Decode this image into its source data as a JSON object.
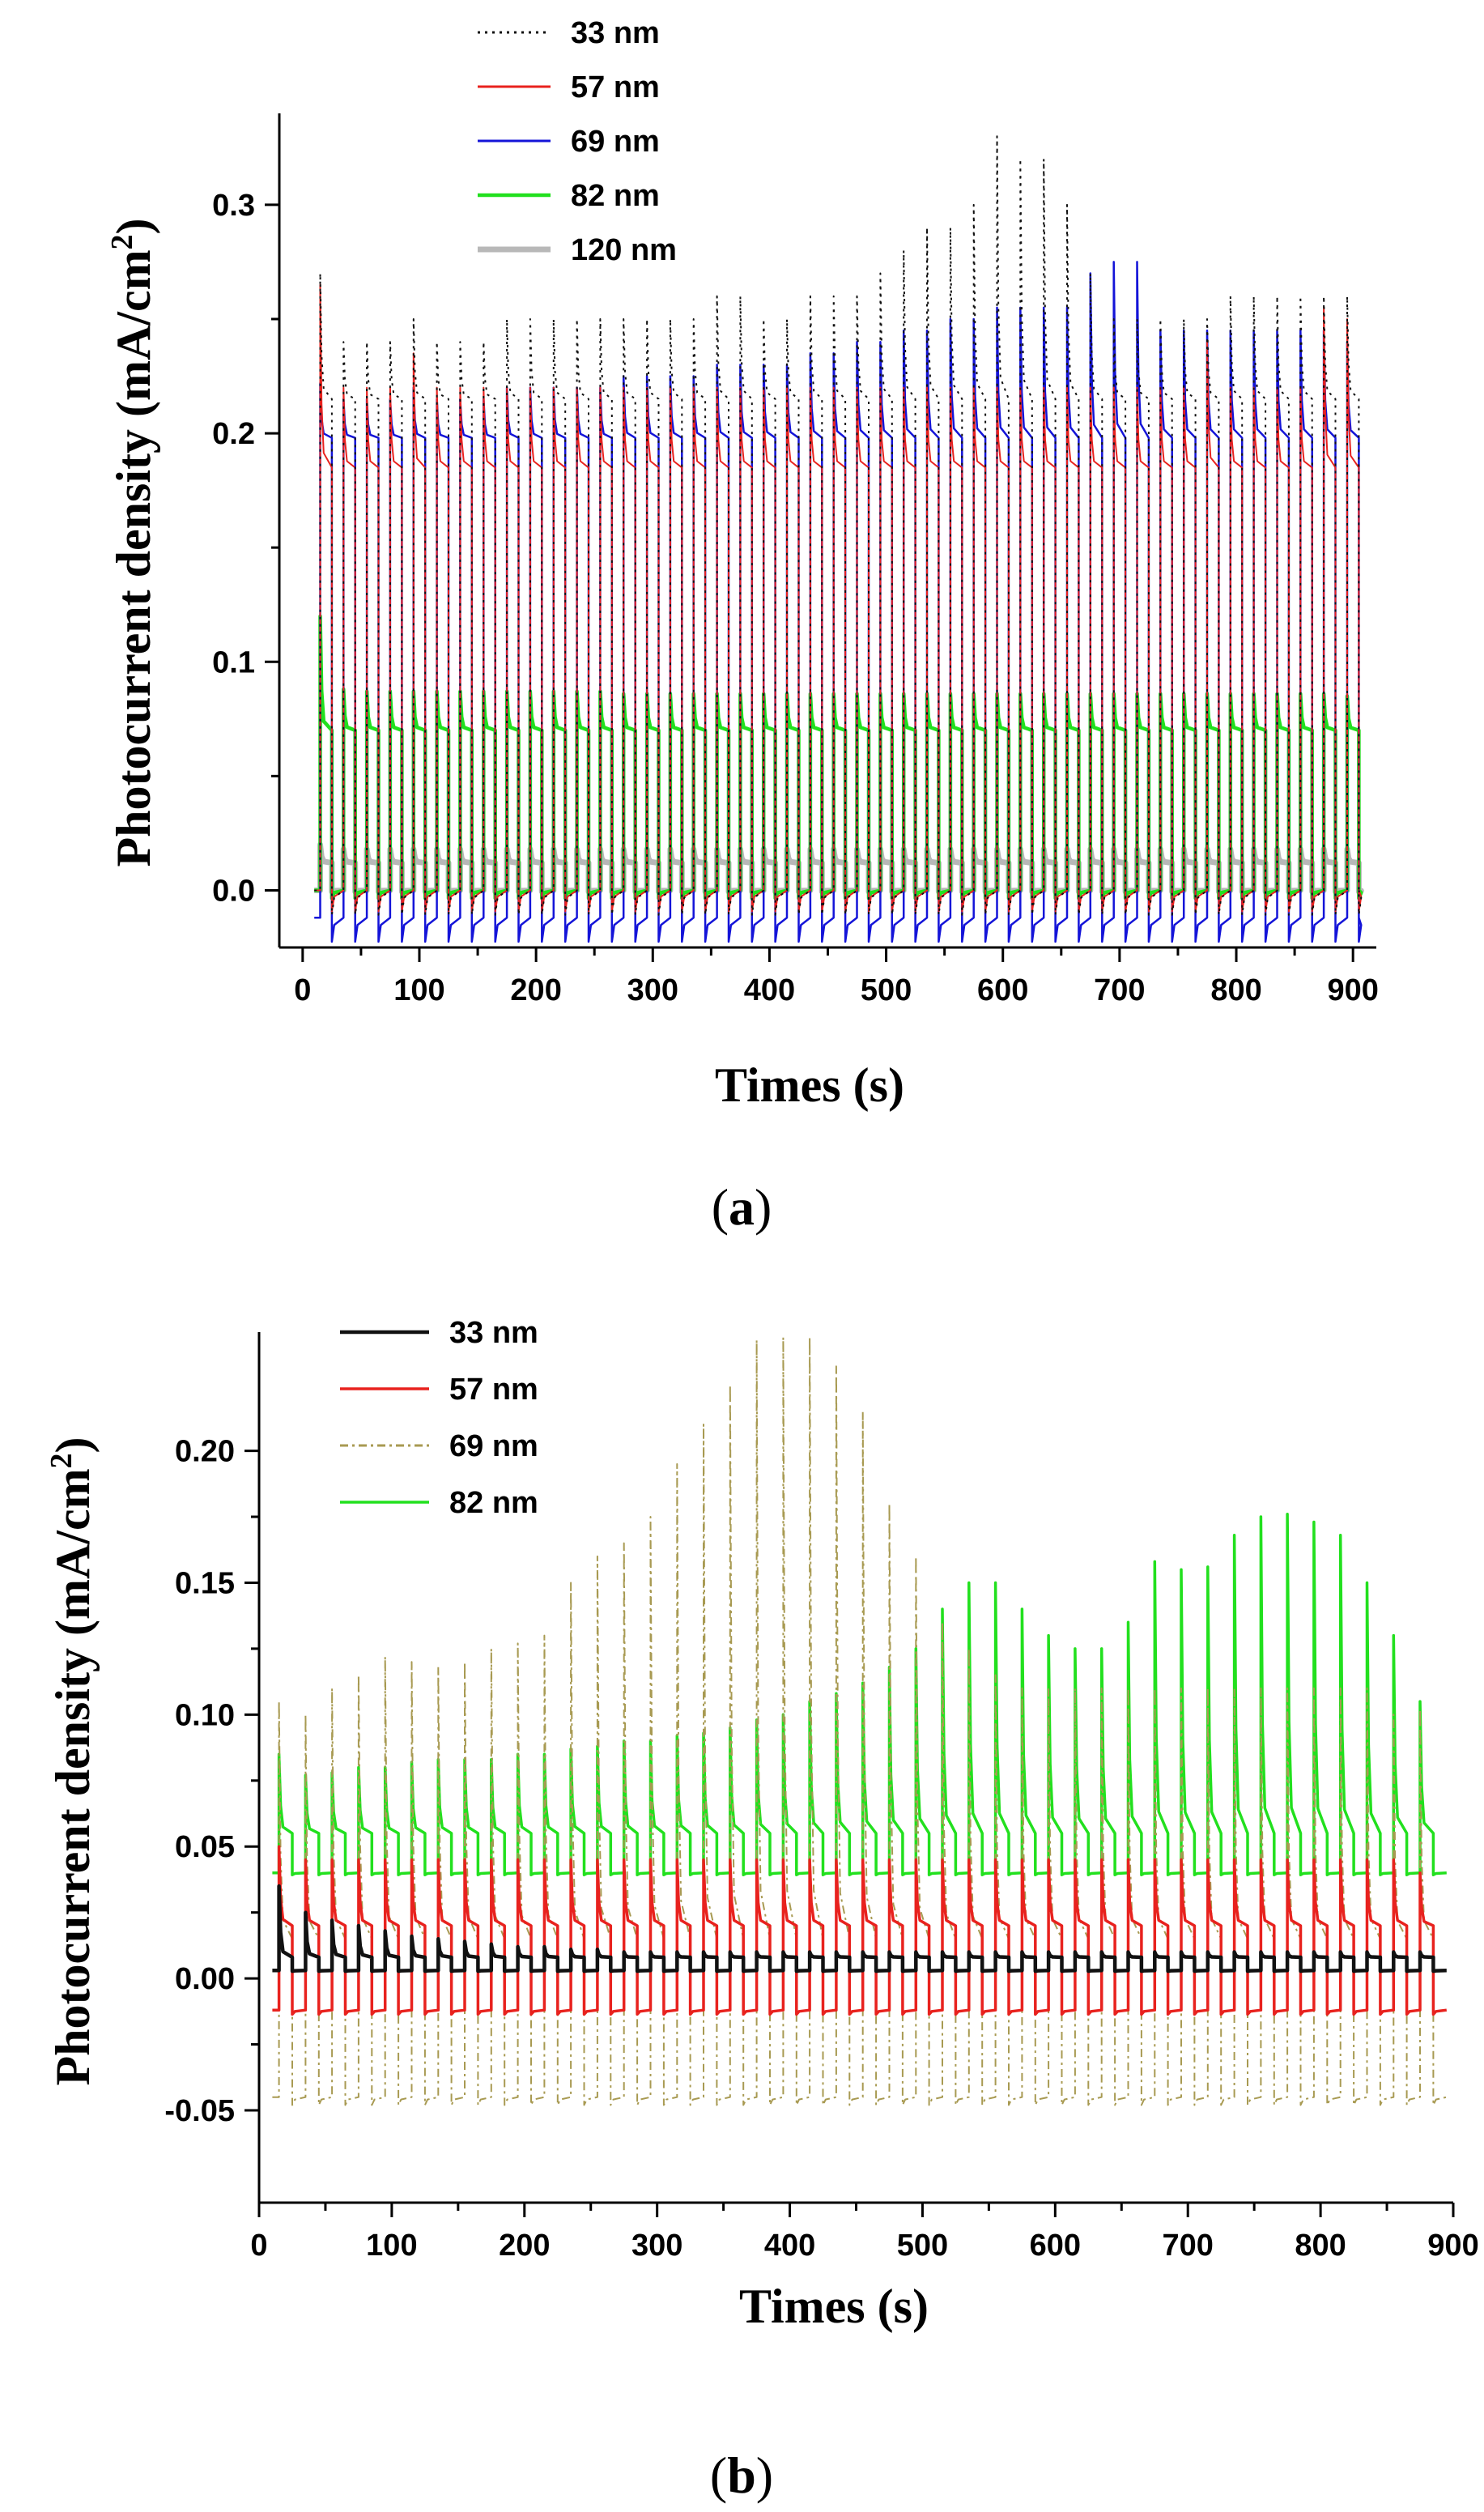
{
  "chart_data": [
    {
      "type": "line",
      "panel": "(a)",
      "panel_text": "a",
      "xlabel": "Times (s)",
      "ylabel": "Photocurrent density (mA/cm²)",
      "ylabel_main": "Photocurrent density (mA/cm",
      "ylabel_sup": "2",
      "ylabel_end": ")",
      "xlim": [
        -20,
        920
      ],
      "ylim": [
        -0.025,
        0.34
      ],
      "xticks": [
        0,
        100,
        200,
        300,
        400,
        500,
        600,
        700,
        800,
        900
      ],
      "xtick_labels": [
        "0",
        "100",
        "200",
        "300",
        "400",
        "500",
        "600",
        "700",
        "800",
        "900"
      ],
      "yticks": [
        0.0,
        0.1,
        0.2,
        0.3
      ],
      "ytick_labels": [
        "0.0",
        "0.1",
        "0.2",
        "0.3"
      ],
      "legend_position": "top-left",
      "period_s": 20,
      "time_range": [
        10,
        905
      ],
      "series": [
        {
          "name": "33  nm",
          "color": "#111111",
          "style": "dotted",
          "width": 2,
          "low": 0.0,
          "plateau": 0.215,
          "spike_peaks": [
            0.27,
            0.24,
            0.24,
            0.24,
            0.25,
            0.24,
            0.24,
            0.24,
            0.25,
            0.25,
            0.25,
            0.25,
            0.25,
            0.25,
            0.25,
            0.25,
            0.25,
            0.26,
            0.26,
            0.25,
            0.25,
            0.26,
            0.26,
            0.26,
            0.27,
            0.28,
            0.29,
            0.29,
            0.3,
            0.33,
            0.32,
            0.32,
            0.3,
            0.27,
            0.25,
            0.25,
            0.25,
            0.25,
            0.25,
            0.26,
            0.26,
            0.26,
            0.26,
            0.26,
            0.26
          ]
        },
        {
          "name": "57 nm",
          "color": "#e8221e",
          "style": "solid",
          "width": 2,
          "low": 0.0,
          "plateau": 0.185,
          "spike_peaks": [
            0.265,
            0.22,
            0.22,
            0.22,
            0.235,
            0.22,
            0.22,
            0.22,
            0.22,
            0.22,
            0.22,
            0.22,
            0.22,
            0.22,
            0.22,
            0.22,
            0.22,
            0.22,
            0.22,
            0.22,
            0.22,
            0.22,
            0.22,
            0.22,
            0.22,
            0.22,
            0.22,
            0.22,
            0.22,
            0.22,
            0.22,
            0.22,
            0.22,
            0.22,
            0.22,
            0.22,
            0.22,
            0.22,
            0.24,
            0.22,
            0.22,
            0.22,
            0.22,
            0.255,
            0.25
          ]
        },
        {
          "name": "69 nm",
          "color": "#1414d8",
          "style": "solid",
          "width": 2.5,
          "low": -0.012,
          "plateau": 0.198,
          "spike_peaks": [
            0.222,
            0.215,
            0.215,
            0.215,
            0.22,
            0.215,
            0.215,
            0.215,
            0.22,
            0.22,
            0.22,
            0.22,
            0.22,
            0.225,
            0.225,
            0.225,
            0.225,
            0.23,
            0.23,
            0.23,
            0.23,
            0.235,
            0.235,
            0.24,
            0.24,
            0.245,
            0.245,
            0.25,
            0.25,
            0.255,
            0.255,
            0.255,
            0.255,
            0.27,
            0.275,
            0.275,
            0.245,
            0.245,
            0.245,
            0.245,
            0.245,
            0.245,
            0.245,
            0.245,
            0.24
          ]
        },
        {
          "name": "82 nm",
          "color": "#22e01e",
          "style": "solid",
          "width": 4.5,
          "low": 0.0,
          "plateau": 0.07,
          "spike_peaks": [
            0.12,
            0.088,
            0.087,
            0.087,
            0.087,
            0.087,
            0.087,
            0.087,
            0.087,
            0.087,
            0.087,
            0.087,
            0.087,
            0.086,
            0.086,
            0.086,
            0.086,
            0.086,
            0.086,
            0.086,
            0.086,
            0.086,
            0.086,
            0.086,
            0.086,
            0.086,
            0.086,
            0.086,
            0.086,
            0.086,
            0.086,
            0.086,
            0.086,
            0.086,
            0.086,
            0.086,
            0.086,
            0.086,
            0.086,
            0.086,
            0.086,
            0.086,
            0.086,
            0.086,
            0.085
          ]
        },
        {
          "name": "120 nm",
          "color": "#b8b8b8",
          "style": "solid",
          "width": 7,
          "low": 0.0,
          "plateau": 0.012,
          "spike_peaks": [
            0.02,
            0.018,
            0.018,
            0.018,
            0.018,
            0.018,
            0.018,
            0.018,
            0.018,
            0.018,
            0.018,
            0.018,
            0.018,
            0.018,
            0.018,
            0.018,
            0.018,
            0.018,
            0.018,
            0.018,
            0.018,
            0.018,
            0.018,
            0.018,
            0.018,
            0.018,
            0.018,
            0.018,
            0.018,
            0.018,
            0.018,
            0.018,
            0.018,
            0.018,
            0.018,
            0.018,
            0.018,
            0.018,
            0.018,
            0.018,
            0.018,
            0.018,
            0.018,
            0.018,
            0.018
          ]
        }
      ]
    },
    {
      "type": "line",
      "panel": "(b)",
      "panel_text": "b",
      "xlabel": "Times (s)",
      "ylabel": "Photocurrent density (mA/cm²)",
      "ylabel_main": "Photocurrent density (mA/cm",
      "ylabel_sup": "2",
      "ylabel_end": ")",
      "xlim": [
        0,
        900
      ],
      "ylim": [
        -0.085,
        0.245
      ],
      "xticks": [
        0,
        100,
        200,
        300,
        400,
        500,
        600,
        700,
        800,
        900
      ],
      "xtick_labels": [
        "0",
        "100",
        "200",
        "300",
        "400",
        "500",
        "600",
        "700",
        "800",
        "900"
      ],
      "yticks": [
        -0.05,
        0.0,
        0.05,
        0.1,
        0.15,
        0.2
      ],
      "ytick_labels": [
        "-0.05",
        "0.00",
        "0.05",
        "0.10",
        "0.15",
        "0.20"
      ],
      "legend_position": "top-left",
      "period_s": 20,
      "time_range": [
        10,
        895
      ],
      "series": [
        {
          "name": "33 nm",
          "color": "#111111",
          "style": "solid",
          "width": 4.5,
          "low": 0.003,
          "plateau": 0.008,
          "spike_peaks": [
            0.035,
            0.025,
            0.022,
            0.02,
            0.018,
            0.016,
            0.015,
            0.014,
            0.013,
            0.012,
            0.012,
            0.011,
            0.011,
            0.01,
            0.01,
            0.01,
            0.01,
            0.01,
            0.01,
            0.01,
            0.01,
            0.01,
            0.01,
            0.01,
            0.01,
            0.01,
            0.01,
            0.01,
            0.01,
            0.01,
            0.01,
            0.01,
            0.01,
            0.01,
            0.01,
            0.01,
            0.01,
            0.01,
            0.01,
            0.01,
            0.01,
            0.01,
            0.01,
            0.01
          ]
        },
        {
          "name": "57 nm",
          "color": "#e8221e",
          "style": "solid",
          "width": 3.5,
          "low": -0.012,
          "plateau": 0.02,
          "spike_peaks": [
            0.05,
            0.045,
            0.045,
            0.045,
            0.045,
            0.045,
            0.045,
            0.045,
            0.045,
            0.045,
            0.045,
            0.045,
            0.045,
            0.045,
            0.045,
            0.045,
            0.045,
            0.045,
            0.045,
            0.045,
            0.045,
            0.045,
            0.045,
            0.045,
            0.045,
            0.045,
            0.045,
            0.045,
            0.045,
            0.045,
            0.045,
            0.045,
            0.045,
            0.045,
            0.045,
            0.045,
            0.045,
            0.045,
            0.045,
            0.045,
            0.045,
            0.045,
            0.045,
            0.04
          ]
        },
        {
          "name": "69 nm",
          "color": "#a89a52",
          "style": "dashdot",
          "width": 2,
          "low": -0.045,
          "plateau": 0.015,
          "spike_peaks": [
            0.105,
            0.1,
            0.11,
            0.115,
            0.122,
            0.12,
            0.118,
            0.12,
            0.125,
            0.127,
            0.13,
            0.15,
            0.16,
            0.165,
            0.175,
            0.195,
            0.21,
            0.225,
            0.242,
            0.243,
            0.243,
            0.232,
            0.215,
            0.18,
            0.16,
            0.135,
            0.125,
            0.115,
            0.11,
            0.11,
            0.11,
            0.11,
            0.11,
            0.11,
            0.11,
            0.11,
            0.11,
            0.11,
            0.11,
            0.11,
            0.11,
            0.11,
            0.1,
            0.102
          ]
        },
        {
          "name": "82 nm",
          "color": "#22e01e",
          "style": "solid",
          "width": 3.5,
          "low": 0.04,
          "plateau": 0.055,
          "spike_peaks": [
            0.085,
            0.077,
            0.078,
            0.08,
            0.08,
            0.082,
            0.083,
            0.083,
            0.083,
            0.085,
            0.085,
            0.087,
            0.088,
            0.09,
            0.09,
            0.092,
            0.093,
            0.095,
            0.098,
            0.1,
            0.105,
            0.108,
            0.112,
            0.118,
            0.125,
            0.14,
            0.15,
            0.15,
            0.14,
            0.13,
            0.125,
            0.125,
            0.135,
            0.158,
            0.155,
            0.156,
            0.168,
            0.175,
            0.176,
            0.173,
            0.168,
            0.15,
            0.13,
            0.105
          ]
        }
      ]
    }
  ]
}
